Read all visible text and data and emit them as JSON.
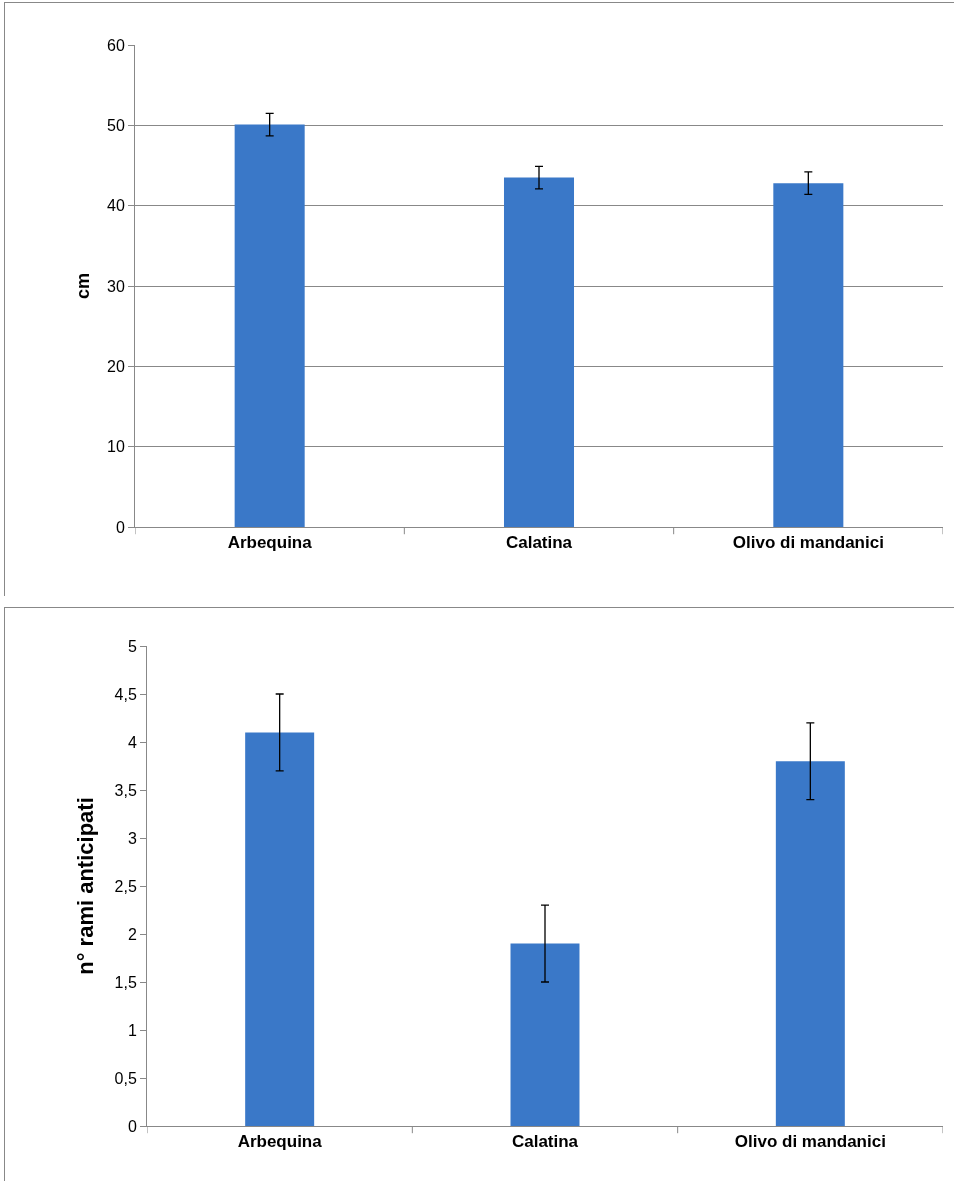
{
  "chart_data": [
    {
      "type": "bar",
      "ylabel": "cm",
      "categories": [
        "Arbequina",
        "Calatina",
        "Olivo di mandanici"
      ],
      "values": [
        50.1,
        43.5,
        42.8
      ],
      "errors": [
        1.4,
        1.4,
        1.4
      ],
      "color": "#3a78c8",
      "ylim": [
        0,
        60
      ],
      "yticks": [
        0,
        10,
        20,
        30,
        40,
        50,
        60
      ],
      "grid": "y"
    },
    {
      "type": "bar",
      "ylabel": "n° rami anticipati",
      "categories": [
        "Arbequina",
        "Calatina",
        "Olivo di mandanici"
      ],
      "values": [
        4.1,
        1.9,
        3.8
      ],
      "errors": [
        0.4,
        0.4,
        0.4
      ],
      "color": "#3a78c8",
      "ylim": [
        0,
        5
      ],
      "yticks": [
        0,
        {
          "value": 0.5,
          "label": "0,5"
        },
        1,
        {
          "value": 1.5,
          "label": "1,5"
        },
        2,
        {
          "value": 2.5,
          "label": "2,5"
        },
        3,
        {
          "value": 3.5,
          "label": "3,5"
        },
        4,
        {
          "value": 4.5,
          "label": "4,5"
        },
        5
      ],
      "grid": false
    }
  ]
}
